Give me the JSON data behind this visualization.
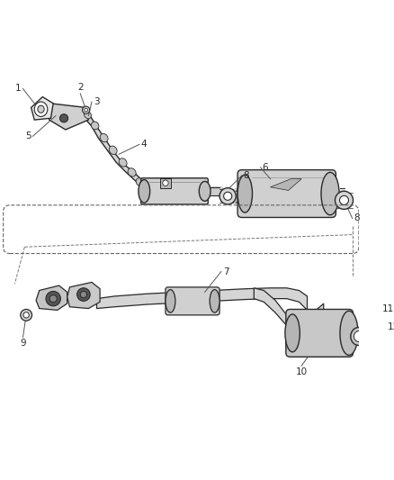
{
  "background_color": "#ffffff",
  "line_color": "#2a2a2a",
  "label_color": "#2a2a2a",
  "lw": 1.0,
  "fig_w": 4.38,
  "fig_h": 5.33,
  "dpi": 100
}
